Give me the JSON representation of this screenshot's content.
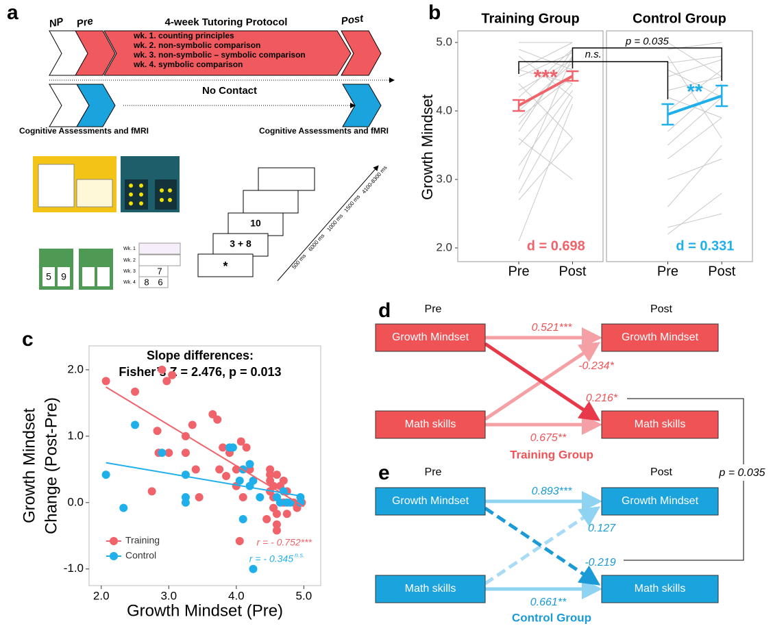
{
  "panel_a": {
    "letter": "a",
    "phase_labels": [
      "NP",
      "Pre",
      "Post"
    ],
    "protocol_title": "4-week Tutoring Protocol",
    "weeks": [
      "wk. 1. counting principles",
      "wk. 2. non-symbolic comparison",
      "wk. 3. non-symbolic – symbolic comparison",
      "wk. 4. symbolic comparison"
    ],
    "no_contact": "No Contact",
    "assessment_labels": [
      "Cognitive Assessments and fMRI",
      "Cognitive Assessments and fMRI"
    ],
    "card_numbers": [
      "5",
      "9"
    ],
    "week_rows": [
      "Wk. 1",
      "Wk. 2",
      "Wk. 3",
      "Wk. 4"
    ],
    "week_row_values": [
      "7",
      "8",
      "6"
    ],
    "trial_screens": [
      "10",
      "3 + 8",
      "*"
    ],
    "timings": [
      "500 ms",
      "6000 ms",
      "1000 ms",
      "1500 ms",
      "4100-8300 ms"
    ]
  },
  "chart_data": [
    {
      "type": "line",
      "letter": "b",
      "ylabel": "Growth Mindset",
      "ylim": [
        1.8,
        5.17
      ],
      "yticks": [
        {
          "value": 2,
          "label": "2.0"
        },
        {
          "value": 3,
          "label": "3.0"
        },
        {
          "value": 4,
          "label": "4.0"
        },
        {
          "value": 5,
          "label": "5.0"
        }
      ],
      "annotations": [
        "n.s.",
        "p = 0.035"
      ],
      "panels": [
        {
          "title": "Training Group",
          "categories": [
            "Pre",
            "Post"
          ],
          "color": "#f0636a",
          "mean": [
            4.08,
            4.51
          ],
          "error": [
            0.08,
            0.07
          ],
          "significance": "***",
          "effect": "d = 0.698",
          "individuals": [
            [
              5,
              5
            ],
            [
              4.9,
              4.6
            ],
            [
              4.6,
              5
            ],
            [
              4.5,
              4.85
            ],
            [
              4.3,
              4.75
            ],
            [
              4.2,
              4.9
            ],
            [
              4,
              4.7
            ],
            [
              3.9,
              4.5
            ],
            [
              3.7,
              4.9
            ],
            [
              3.5,
              4.4
            ],
            [
              3.2,
              4.3
            ],
            [
              3,
              4.8
            ],
            [
              2.8,
              4.2
            ],
            [
              2.7,
              3.6
            ],
            [
              2.1,
              4.1
            ],
            [
              4.8,
              4.2
            ],
            [
              4.4,
              3.6
            ],
            [
              3.6,
              3.0
            ],
            [
              4.6,
              4.4
            ],
            [
              3.8,
              4.8
            ]
          ]
        },
        {
          "title": "Control Group",
          "categories": [
            "Pre",
            "Post"
          ],
          "color": "#1fb0ec",
          "mean": [
            3.95,
            4.22
          ],
          "error": [
            0.15,
            0.15
          ],
          "significance": "**",
          "effect": "d = 0.331",
          "individuals": [
            [
              5,
              4.5
            ],
            [
              4.9,
              5
            ],
            [
              4.7,
              4.8
            ],
            [
              4.5,
              4.75
            ],
            [
              4.3,
              4.5
            ],
            [
              4.2,
              3.9
            ],
            [
              4,
              4.6
            ],
            [
              3.7,
              4.4
            ],
            [
              3.5,
              4.2
            ],
            [
              3.3,
              3.9
            ],
            [
              3,
              3.3
            ],
            [
              2.6,
              3.5
            ],
            [
              2.3,
              2.5
            ],
            [
              2.2,
              2.8
            ],
            [
              4.8,
              3.6
            ],
            [
              4.6,
              4.2
            ]
          ]
        }
      ]
    },
    {
      "type": "scatter",
      "letter": "c",
      "title": [
        "Slope differences:",
        "Fisher’s Z = 2.476, p = 0.013"
      ],
      "xlabel": "Growth Mindset (Pre)",
      "ylabel": [
        "Growth Mindset",
        "Change (Post-Pre)"
      ],
      "xlim": [
        1.82,
        5.25
      ],
      "ylim": [
        -1.25,
        2.36
      ],
      "xticks": [
        {
          "value": 2,
          "label": "2.0"
        },
        {
          "value": 3,
          "label": "3.0"
        },
        {
          "value": 4,
          "label": "4.0"
        },
        {
          "value": 5,
          "label": "5.0"
        }
      ],
      "yticks": [
        {
          "value": 2,
          "label": "2.0"
        },
        {
          "value": 1,
          "label": "1.0"
        },
        {
          "value": 0,
          "label": "0.0"
        },
        {
          "value": -1,
          "label": "-1.0"
        }
      ],
      "series": [
        {
          "name": "Training",
          "color": "#f0636a",
          "x": [
            2.07,
            2.5,
            2.75,
            2.83,
            2.85,
            2.9,
            2.97,
            3.05,
            3.0,
            3.25,
            3.25,
            3.35,
            3.45,
            3.4,
            3.65,
            3.72,
            3.8,
            3.75,
            3.85,
            3.9,
            4.0,
            4.0,
            4.07,
            4.15,
            4.2,
            4.05,
            4.1,
            4.45,
            4.5,
            4.5,
            4.5,
            4.55,
            4.55,
            4.55,
            4.6,
            4.6,
            4.6,
            4.65,
            4.7,
            4.7,
            4.75,
            4.75,
            4.85,
            4.9,
            4.97,
            4.6,
            4.5
          ],
          "y": [
            1.83,
            1.67,
            0.17,
            1.08,
            0.75,
            2.0,
            1.83,
            1.92,
            0.75,
            1.0,
            0.75,
            1.17,
            0.08,
            0.5,
            1.33,
            1.25,
            0.83,
            0.5,
            0.4,
            0.75,
            0.5,
            0.25,
            0.92,
            0.83,
            0.5,
            -0.58,
            0.08,
            -0.25,
            0.5,
            0.42,
            0.33,
            0.25,
            0.08,
            -0.08,
            -0.17,
            -0.33,
            -0.42,
            0.25,
            0.33,
            0.0,
            0.17,
            -0.17,
            0.0,
            -0.08,
            0.0,
            0.42,
            0.17
          ],
          "fit": {
            "x": [
              2.07,
              5.0
            ],
            "y": [
              1.74,
              -0.06
            ]
          },
          "stat": "r = - 0.752***"
        },
        {
          "name": "Control",
          "color": "#1fb0ec",
          "x": [
            2.07,
            2.33,
            2.5,
            2.9,
            3.25,
            3.25,
            3.25,
            3.9,
            3.95,
            4.05,
            4.1,
            4.2,
            4.25,
            4.25,
            4.2,
            4.35,
            4.6,
            4.65,
            4.75,
            4.8,
            4.95,
            4.95,
            4.7,
            4.1
          ],
          "y": [
            0.42,
            -0.08,
            1.17,
            0.75,
            0.42,
            0.08,
            0.0,
            0.83,
            0.83,
            0.33,
            -0.25,
            0.58,
            0.33,
            -1.0,
            0.25,
            0.08,
            0.08,
            0.0,
            0.0,
            0.0,
            0.08,
            0.0,
            0.17,
            0.5
          ],
          "fit": {
            "x": [
              2.07,
              4.95
            ],
            "y": [
              0.6,
              0.1
            ]
          },
          "stat": "r = - 0.345",
          "stat_note": "n.s."
        }
      ]
    }
  ],
  "panel_d": {
    "letter": "d",
    "pre": "Pre",
    "post": "Post",
    "boxes": [
      "Growth Mindset",
      "Math skills",
      "Growth Mindset",
      "Math skills"
    ],
    "paths": [
      "0.521***",
      "-0.234*",
      "0.216*",
      "0.675**"
    ],
    "group": "Training Group"
  },
  "panel_e": {
    "letter": "e",
    "pre": "Pre",
    "post": "Post",
    "boxes": [
      "Growth Mindset",
      "Math skills",
      "Growth Mindset",
      "Math skills"
    ],
    "paths": [
      "0.893***",
      "0.127",
      "-0.219",
      "0.661**"
    ],
    "group": "Control Group"
  },
  "comparison": "p = 0.035"
}
